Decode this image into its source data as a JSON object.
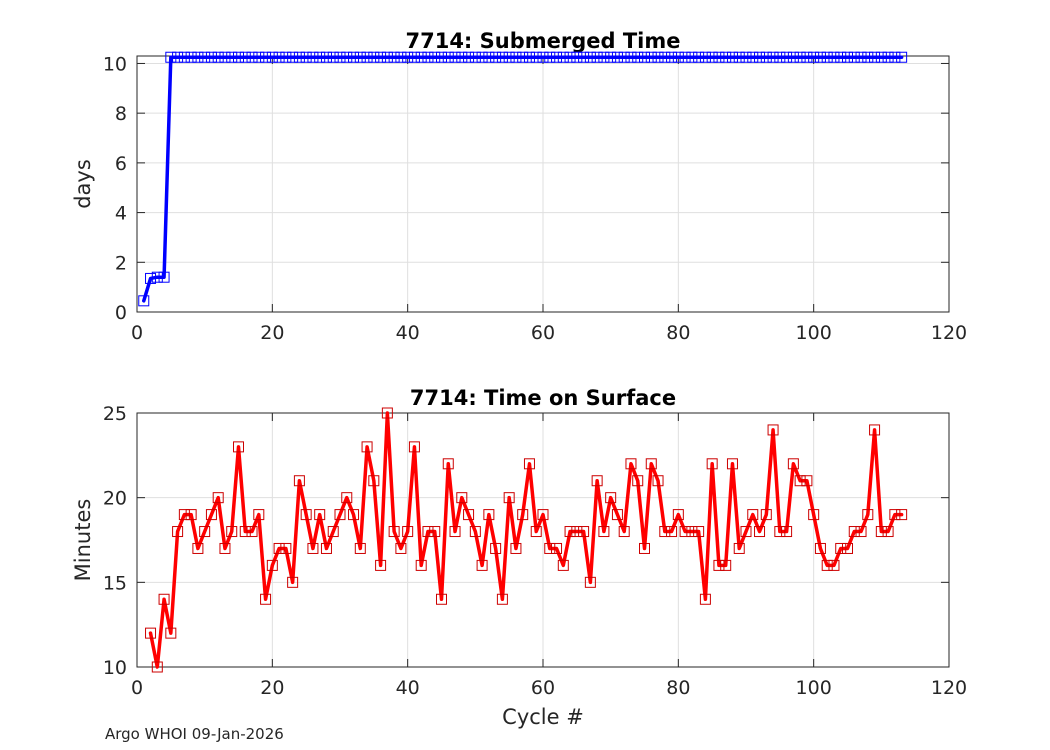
{
  "footer": "Argo WHOI 09-Jan-2026",
  "chart_data": [
    {
      "type": "line",
      "title": "7714: Submerged Time",
      "xlabel": "",
      "ylabel": "days",
      "xlim": [
        0,
        120
      ],
      "ylim": [
        0,
        10.3
      ],
      "xticks": [
        0,
        20,
        40,
        60,
        80,
        100,
        120
      ],
      "yticks": [
        0,
        2,
        4,
        6,
        8,
        10
      ],
      "grid": true,
      "color": "#0000ff",
      "marker_color": "#0000ff",
      "series": [
        {
          "x": [
            1,
            2,
            3,
            4,
            5,
            6,
            7,
            8,
            9,
            10,
            11,
            12,
            13,
            14,
            15,
            16,
            17,
            18,
            19,
            20,
            21,
            22,
            23,
            24,
            25,
            26,
            27,
            28,
            29,
            30,
            31,
            32,
            33,
            34,
            35,
            36,
            37,
            38,
            39,
            40,
            41,
            42,
            43,
            44,
            45,
            46,
            47,
            48,
            49,
            50,
            51,
            52,
            53,
            54,
            55,
            56,
            57,
            58,
            59,
            60,
            61,
            62,
            63,
            64,
            65,
            66,
            67,
            68,
            69,
            70,
            71,
            72,
            73,
            74,
            75,
            76,
            77,
            78,
            79,
            80,
            81,
            82,
            83,
            84,
            85,
            86,
            87,
            88,
            89,
            90,
            91,
            92,
            93,
            94,
            95,
            96,
            97,
            98,
            99,
            100,
            101,
            102,
            103,
            104,
            105,
            106,
            107,
            108,
            109,
            110,
            111,
            112,
            113
          ],
          "values": [
            0.45,
            1.35,
            1.4,
            1.4,
            10.25,
            10.25,
            10.25,
            10.25,
            10.25,
            10.25,
            10.25,
            10.25,
            10.25,
            10.25,
            10.25,
            10.25,
            10.25,
            10.25,
            10.25,
            10.25,
            10.25,
            10.25,
            10.25,
            10.25,
            10.25,
            10.25,
            10.25,
            10.25,
            10.25,
            10.25,
            10.25,
            10.25,
            10.25,
            10.25,
            10.25,
            10.25,
            10.25,
            10.25,
            10.25,
            10.25,
            10.25,
            10.25,
            10.25,
            10.25,
            10.25,
            10.25,
            10.25,
            10.25,
            10.25,
            10.25,
            10.25,
            10.25,
            10.25,
            10.25,
            10.25,
            10.25,
            10.25,
            10.25,
            10.25,
            10.25,
            10.25,
            10.25,
            10.25,
            10.25,
            10.25,
            10.25,
            10.25,
            10.25,
            10.25,
            10.25,
            10.25,
            10.25,
            10.25,
            10.25,
            10.25,
            10.25,
            10.25,
            10.25,
            10.25,
            10.25,
            10.25,
            10.25,
            10.25,
            10.25,
            10.25,
            10.25,
            10.25,
            10.25,
            10.25,
            10.25,
            10.25,
            10.25,
            10.25,
            10.25,
            10.25,
            10.25,
            10.25,
            10.25,
            10.25,
            10.25,
            10.25,
            10.25,
            10.25,
            10.25,
            10.25,
            10.25,
            10.25,
            10.25,
            10.25,
            10.25,
            10.25,
            10.25,
            10.25
          ]
        }
      ]
    },
    {
      "type": "line",
      "title": "7714: Time on Surface",
      "xlabel": "Cycle #",
      "ylabel": "Minutes",
      "xlim": [
        0,
        120
      ],
      "ylim": [
        10,
        25
      ],
      "xticks": [
        0,
        20,
        40,
        60,
        80,
        100,
        120
      ],
      "yticks": [
        10,
        15,
        20,
        25
      ],
      "grid": true,
      "color": "#ff0000",
      "marker_color": "#cc0000",
      "series": [
        {
          "x": [
            2,
            3,
            4,
            5,
            6,
            7,
            8,
            9,
            10,
            11,
            12,
            13,
            14,
            15,
            16,
            17,
            18,
            19,
            20,
            21,
            22,
            23,
            24,
            25,
            26,
            27,
            28,
            29,
            30,
            31,
            32,
            33,
            34,
            35,
            36,
            37,
            38,
            39,
            40,
            41,
            42,
            43,
            44,
            45,
            46,
            47,
            48,
            49,
            50,
            51,
            52,
            53,
            54,
            55,
            56,
            57,
            58,
            59,
            60,
            61,
            62,
            63,
            64,
            65,
            66,
            67,
            68,
            69,
            70,
            71,
            72,
            73,
            74,
            75,
            76,
            77,
            78,
            79,
            80,
            81,
            82,
            83,
            84,
            85,
            86,
            87,
            88,
            89,
            90,
            91,
            92,
            93,
            94,
            95,
            96,
            97,
            98,
            99,
            100,
            101,
            102,
            103,
            104,
            105,
            106,
            107,
            108,
            109,
            110,
            111,
            112,
            113
          ],
          "values": [
            12,
            10,
            14,
            12,
            18,
            19,
            19,
            17,
            18,
            19,
            20,
            17,
            18,
            23,
            18,
            18,
            19,
            14,
            16,
            17,
            17,
            15,
            21,
            19,
            17,
            19,
            17,
            18,
            19,
            20,
            19,
            17,
            23,
            21,
            16,
            25,
            18,
            17,
            18,
            23,
            16,
            18,
            18,
            14,
            22,
            18,
            20,
            19,
            18,
            16,
            19,
            17,
            14,
            20,
            17,
            19,
            22,
            18,
            19,
            17,
            17,
            16,
            18,
            18,
            18,
            15,
            21,
            18,
            20,
            19,
            18,
            22,
            21,
            17,
            22,
            21,
            18,
            18,
            19,
            18,
            18,
            18,
            14,
            22,
            16,
            16,
            22,
            17,
            18,
            19,
            18,
            19,
            24,
            18,
            18,
            22,
            21,
            21,
            19,
            17,
            16,
            16,
            17,
            17,
            18,
            18,
            19,
            24,
            18,
            18,
            19,
            19
          ]
        }
      ]
    }
  ]
}
